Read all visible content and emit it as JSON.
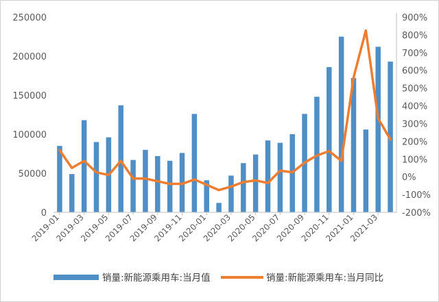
{
  "colors": {
    "bar": "#4f8fc6",
    "line": "#ed7d31",
    "axis": "#bfbfbf",
    "text": "#595959"
  },
  "chart_data": {
    "type": "bar",
    "x": [
      "2019-01",
      "2019-02",
      "2019-03",
      "2019-04",
      "2019-05",
      "2019-06",
      "2019-07",
      "2019-08",
      "2019-09",
      "2019-10",
      "2019-11",
      "2019-12",
      "2020-01",
      "2020-02",
      "2020-03",
      "2020-04",
      "2020-05",
      "2020-06",
      "2020-07",
      "2020-08",
      "2020-09",
      "2020-10",
      "2020-11",
      "2020-12",
      "2021-01",
      "2021-02",
      "2021-03",
      "2021-04"
    ],
    "x_tick_labels": [
      "2019-01",
      "2019-03",
      "2019-05",
      "2019-07",
      "2019-09",
      "2019-11",
      "2020-01",
      "2020-03",
      "2020-05",
      "2020-07",
      "2020-09",
      "2020-11",
      "2021-01",
      "2021-03"
    ],
    "series": [
      {
        "name": "销量:新能源乘用车:当月值",
        "type": "bar",
        "axis": "left",
        "values": [
          85000,
          49000,
          118000,
          90000,
          96000,
          137000,
          67000,
          80000,
          72000,
          66000,
          76000,
          126000,
          41000,
          12000,
          47000,
          63000,
          74000,
          92000,
          89000,
          100000,
          126000,
          148000,
          186000,
          225000,
          172000,
          106000,
          212000,
          193000
        ]
      },
      {
        "name": "销量:新能源乘用车:当月同比",
        "type": "line",
        "axis": "right",
        "values": [
          150,
          50,
          90,
          25,
          10,
          90,
          -10,
          -10,
          -25,
          -40,
          -40,
          -15,
          -45,
          -75,
          -55,
          -30,
          -20,
          -35,
          35,
          25,
          80,
          120,
          145,
          90,
          560,
          825,
          330,
          210
        ]
      }
    ],
    "y_left": {
      "min": 0,
      "max": 250000,
      "ticks": [
        "0",
        "50000",
        "100000",
        "150000",
        "200000",
        "250000"
      ]
    },
    "y_right": {
      "min": -200,
      "max": 900,
      "ticks": [
        "-200%",
        "-100%",
        "0%",
        "100%",
        "200%",
        "300%",
        "400%",
        "500%",
        "600%",
        "700%",
        "800%",
        "900%"
      ]
    },
    "legend": {
      "position": "bottom",
      "bar_label": "销量:新能源乘用车:当月值",
      "line_label": "销量:新能源乘用车:当月同比"
    },
    "grid": "horizontal"
  }
}
